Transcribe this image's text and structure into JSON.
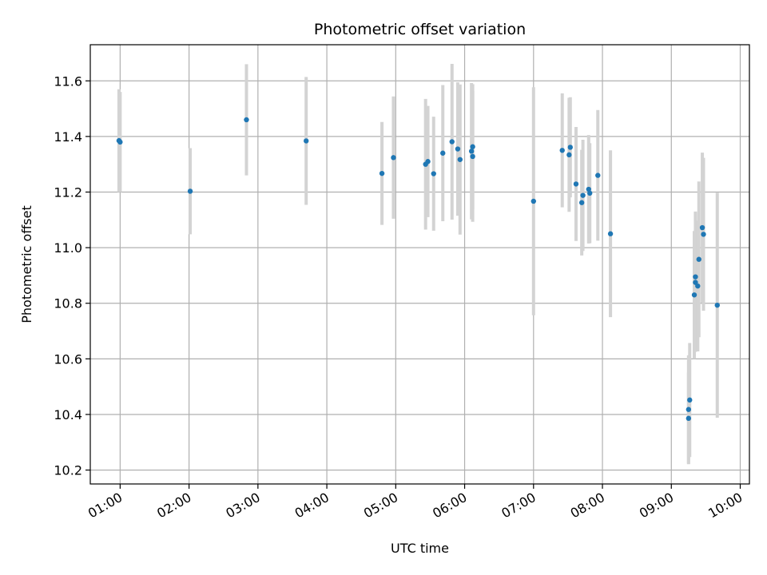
{
  "chart_data": {
    "type": "scatter",
    "title": "Photometric offset variation",
    "xlabel": "UTC time",
    "ylabel": "Photometric offset",
    "x_unit": "hours UTC",
    "xlim": [
      "00:34",
      "10:08"
    ],
    "ylim": [
      10.15,
      11.73
    ],
    "x_ticks": [
      "01:00",
      "02:00",
      "03:00",
      "04:00",
      "05:00",
      "06:00",
      "07:00",
      "08:00",
      "09:00",
      "10:00"
    ],
    "y_ticks": [
      "10.2",
      "10.4",
      "10.6",
      "10.8",
      "11.0",
      "11.2",
      "11.4",
      "11.6"
    ],
    "grid": true,
    "point_color": "#1f77b4",
    "errorbar_color": "#d3d3d3",
    "points": [
      {
        "x": "00:59",
        "y": 11.385,
        "err": 0.185
      },
      {
        "x": "01:00",
        "y": 11.38,
        "err": 0.18
      },
      {
        "x": "02:01",
        "y": 11.203,
        "err": 0.155
      },
      {
        "x": "02:50",
        "y": 11.46,
        "err": 0.2
      },
      {
        "x": "03:42",
        "y": 11.384,
        "err": 0.23
      },
      {
        "x": "04:48",
        "y": 11.267,
        "err": 0.185
      },
      {
        "x": "04:58",
        "y": 11.324,
        "err": 0.22
      },
      {
        "x": "05:26",
        "y": 11.3,
        "err": 0.235
      },
      {
        "x": "05:28",
        "y": 11.31,
        "err": 0.2
      },
      {
        "x": "05:33",
        "y": 11.266,
        "err": 0.205
      },
      {
        "x": "05:41",
        "y": 11.34,
        "err": 0.245
      },
      {
        "x": "05:49",
        "y": 11.381,
        "err": 0.28
      },
      {
        "x": "05:54",
        "y": 11.355,
        "err": 0.24
      },
      {
        "x": "05:56",
        "y": 11.317,
        "err": 0.27
      },
      {
        "x": "06:06",
        "y": 11.347,
        "err": 0.245
      },
      {
        "x": "06:07",
        "y": 11.363,
        "err": 0.225
      },
      {
        "x": "06:07",
        "y": 11.328,
        "err": 0.235
      },
      {
        "x": "07:00",
        "y": 11.167,
        "err": 0.41
      },
      {
        "x": "07:25",
        "y": 11.35,
        "err": 0.205
      },
      {
        "x": "07:31",
        "y": 11.334,
        "err": 0.205
      },
      {
        "x": "07:32",
        "y": 11.361,
        "err": 0.18
      },
      {
        "x": "07:37",
        "y": 11.229,
        "err": 0.205
      },
      {
        "x": "07:42",
        "y": 11.162,
        "err": 0.19
      },
      {
        "x": "07:43",
        "y": 11.188,
        "err": 0.2
      },
      {
        "x": "07:48",
        "y": 11.21,
        "err": 0.195
      },
      {
        "x": "07:49",
        "y": 11.196,
        "err": 0.18
      },
      {
        "x": "07:56",
        "y": 11.26,
        "err": 0.235
      },
      {
        "x": "08:07",
        "y": 11.05,
        "err": 0.3
      },
      {
        "x": "09:15",
        "y": 10.386,
        "err": 0.165
      },
      {
        "x": "09:15",
        "y": 10.418,
        "err": 0.195
      },
      {
        "x": "09:16",
        "y": 10.452,
        "err": 0.205
      },
      {
        "x": "09:20",
        "y": 10.83,
        "err": 0.23
      },
      {
        "x": "09:21",
        "y": 10.895,
        "err": 0.235
      },
      {
        "x": "09:21",
        "y": 10.875,
        "err": 0.25
      },
      {
        "x": "09:23",
        "y": 10.862,
        "err": 0.235
      },
      {
        "x": "09:24",
        "y": 10.958,
        "err": 0.28
      },
      {
        "x": "09:27",
        "y": 11.072,
        "err": 0.27
      },
      {
        "x": "09:28",
        "y": 11.048,
        "err": 0.275
      },
      {
        "x": "09:40",
        "y": 10.793,
        "err": 0.405
      }
    ]
  }
}
